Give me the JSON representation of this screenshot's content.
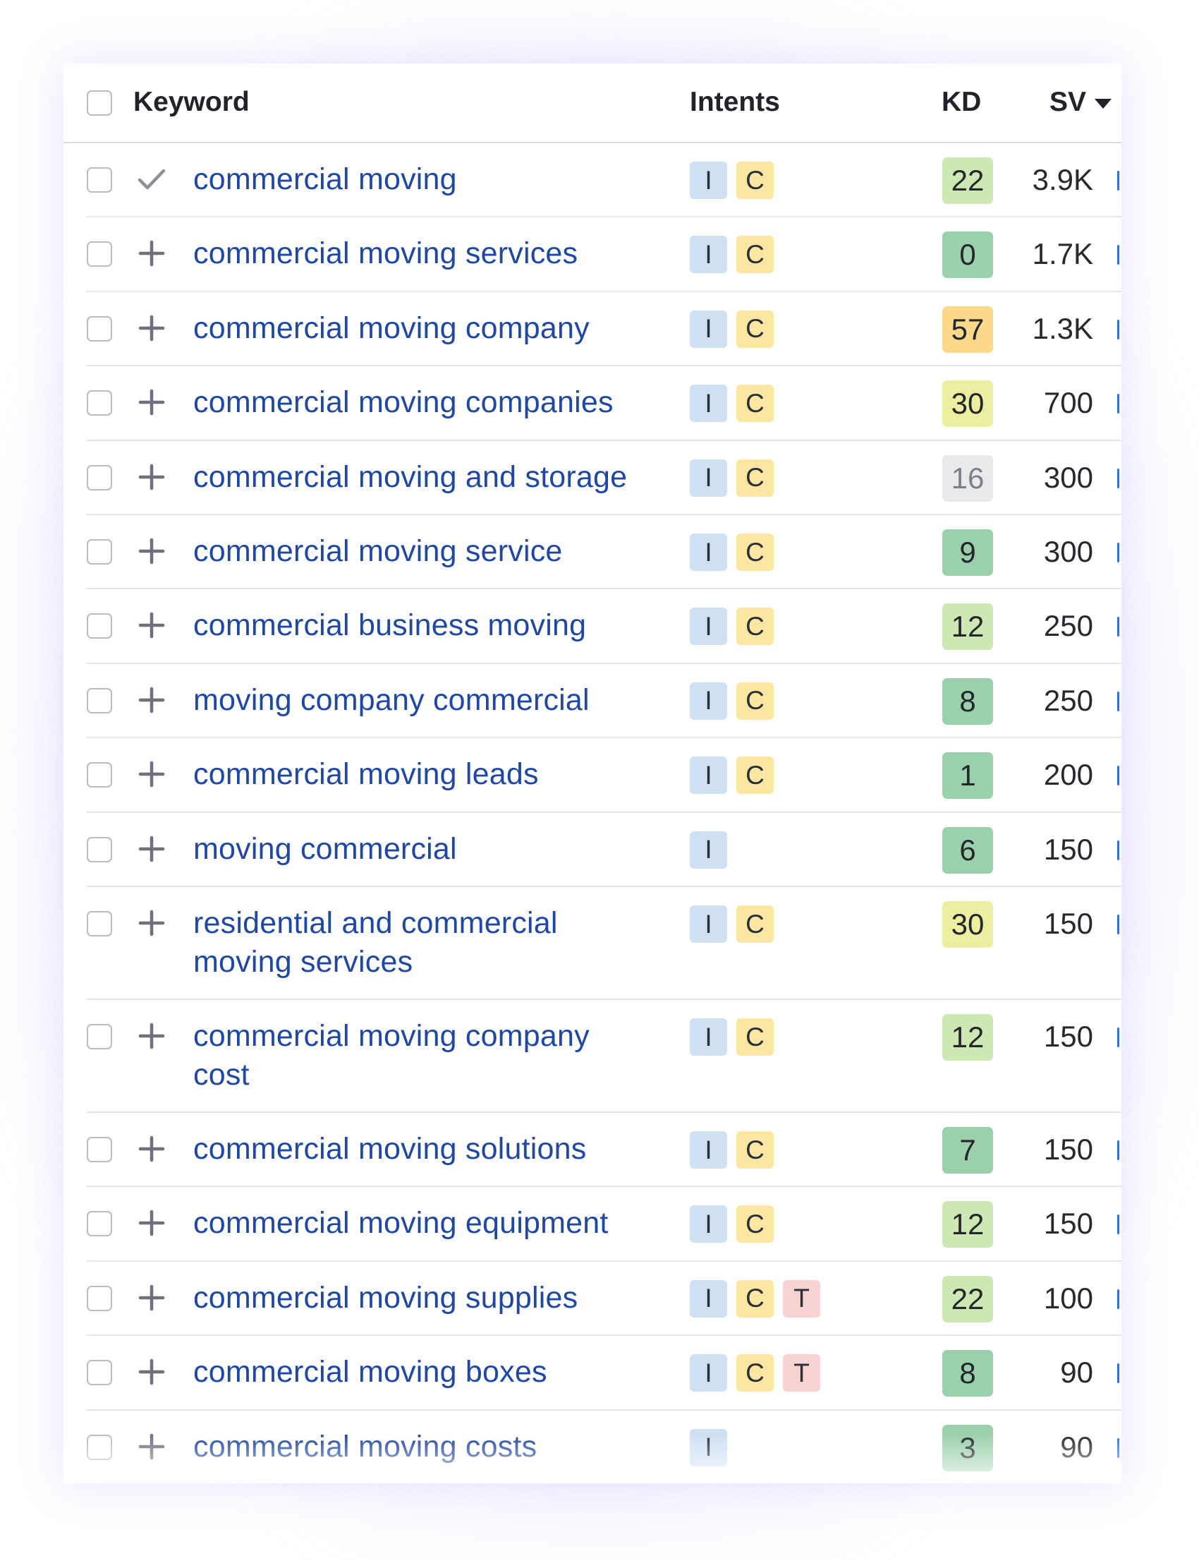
{
  "header": {
    "keyword": "Keyword",
    "intents": "Intents",
    "kd": "KD",
    "sv": "SV"
  },
  "colors": {
    "keyword_link": "#1f48a5",
    "intent_I": "#cfe0f3",
    "intent_C": "#fbe7a1",
    "intent_T": "#f7d3d3",
    "kd_very_easy": "#9ad0ab",
    "kd_easy": "#cde8b3",
    "kd_possible": "#ecefa0",
    "kd_difficult": "#fcd88a",
    "kd_no_data": "#e9eaec"
  },
  "rows": [
    {
      "keyword": "commercial moving",
      "status": "added",
      "intents": [
        "I",
        "C"
      ],
      "kd": "22",
      "kd_level": "easy",
      "sv": "3.9K"
    },
    {
      "keyword": "commercial moving services",
      "status": "add",
      "intents": [
        "I",
        "C"
      ],
      "kd": "0",
      "kd_level": "very_easy",
      "sv": "1.7K"
    },
    {
      "keyword": "commercial moving company",
      "status": "add",
      "intents": [
        "I",
        "C"
      ],
      "kd": "57",
      "kd_level": "difficult",
      "sv": "1.3K"
    },
    {
      "keyword": "commercial moving companies",
      "status": "add",
      "intents": [
        "I",
        "C"
      ],
      "kd": "30",
      "kd_level": "possible",
      "sv": "700"
    },
    {
      "keyword": "commercial moving and storage",
      "status": "add",
      "intents": [
        "I",
        "C"
      ],
      "kd": "16",
      "kd_level": "no_data",
      "sv": "300"
    },
    {
      "keyword": "commercial moving service",
      "status": "add",
      "intents": [
        "I",
        "C"
      ],
      "kd": "9",
      "kd_level": "very_easy",
      "sv": "300"
    },
    {
      "keyword": "commercial business moving",
      "status": "add",
      "intents": [
        "I",
        "C"
      ],
      "kd": "12",
      "kd_level": "easy",
      "sv": "250"
    },
    {
      "keyword": "moving company commercial",
      "status": "add",
      "intents": [
        "I",
        "C"
      ],
      "kd": "8",
      "kd_level": "very_easy",
      "sv": "250"
    },
    {
      "keyword": "commercial moving leads",
      "status": "add",
      "intents": [
        "I",
        "C"
      ],
      "kd": "1",
      "kd_level": "very_easy",
      "sv": "200"
    },
    {
      "keyword": "moving commercial",
      "status": "add",
      "intents": [
        "I"
      ],
      "kd": "6",
      "kd_level": "very_easy",
      "sv": "150"
    },
    {
      "keyword": "residential and commercial moving services",
      "status": "add",
      "intents": [
        "I",
        "C"
      ],
      "kd": "30",
      "kd_level": "possible",
      "sv": "150"
    },
    {
      "keyword": "commercial moving company cost",
      "status": "add",
      "intents": [
        "I",
        "C"
      ],
      "kd": "12",
      "kd_level": "easy",
      "sv": "150"
    },
    {
      "keyword": "commercial moving solutions",
      "status": "add",
      "intents": [
        "I",
        "C"
      ],
      "kd": "7",
      "kd_level": "very_easy",
      "sv": "150"
    },
    {
      "keyword": "commercial moving equipment",
      "status": "add",
      "intents": [
        "I",
        "C"
      ],
      "kd": "12",
      "kd_level": "easy",
      "sv": "150"
    },
    {
      "keyword": "commercial moving supplies",
      "status": "add",
      "intents": [
        "I",
        "C",
        "T"
      ],
      "kd": "22",
      "kd_level": "easy",
      "sv": "100"
    },
    {
      "keyword": "commercial moving boxes",
      "status": "add",
      "intents": [
        "I",
        "C",
        "T"
      ],
      "kd": "8",
      "kd_level": "very_easy",
      "sv": "90"
    },
    {
      "keyword": "commercial moving costs",
      "status": "add",
      "intents": [
        "I"
      ],
      "kd": "3",
      "kd_level": "very_easy",
      "sv": "90"
    }
  ]
}
